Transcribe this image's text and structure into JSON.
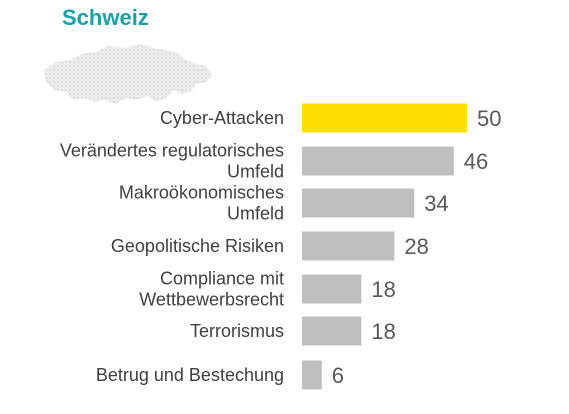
{
  "region_title": "Schweiz",
  "region_map_icon": "switzerland-map-icon",
  "colors": {
    "title": "#1aa0aa",
    "highlight_bar": "#ffe000",
    "default_bar": "#bfbfbf",
    "map_fill": "#e6e6e6"
  },
  "chart_data": {
    "type": "bar",
    "orientation": "horizontal",
    "categories": [
      [
        "Cyber-Attacken"
      ],
      [
        "Verändertes regulatorisches",
        "Umfeld"
      ],
      [
        "Makroökonomisches",
        "Umfeld"
      ],
      [
        "Geopolitische Risiken"
      ],
      [
        "Compliance mit",
        "Wettbewerbsrecht"
      ],
      [
        "Terrorismus"
      ],
      [
        "Betrug und Bestechung"
      ]
    ],
    "values": [
      50,
      46,
      34,
      28,
      18,
      18,
      6
    ],
    "value_labels": [
      "50",
      "46",
      "34",
      "28",
      "18",
      "18",
      "6"
    ],
    "highlight_index": 0,
    "xlim": [
      0,
      50
    ],
    "title": "",
    "xlabel": "",
    "ylabel": "",
    "grid": false
  }
}
